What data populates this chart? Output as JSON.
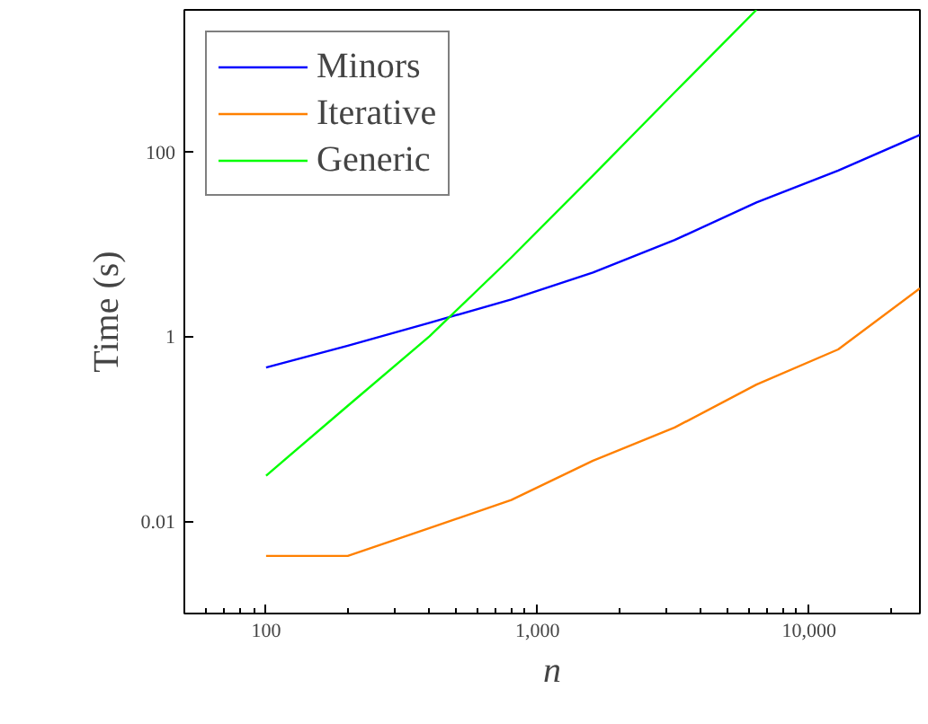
{
  "chart_data": {
    "type": "line",
    "xlabel": "n",
    "ylabel": "Time (s)",
    "log": "xy",
    "grid": false,
    "legend": "top left",
    "marker": "none",
    "line_style": "solid",
    "x": [
      100,
      200,
      400,
      800,
      1600,
      3200,
      6400,
      12800,
      25600
    ],
    "xlim": [
      50,
      25600
    ],
    "xticks": [
      {
        "value": 100,
        "label": "100"
      },
      {
        "value": 1000,
        "label": "1,000"
      },
      {
        "value": 10000,
        "label": "10,000"
      }
    ],
    "ylim": [
      0.001,
      3400
    ],
    "yticks": [
      0.01,
      1,
      100
    ],
    "series": [
      {
        "name": "Minors",
        "color": "#0000ff",
        "values": [
          0.46,
          0.79,
          1.4,
          2.5,
          4.9,
          11,
          28,
          62,
          151
        ]
      },
      {
        "name": "Iterative",
        "color": "#ff8000",
        "values": [
          0.0042,
          0.0042,
          0.0084,
          0.0169,
          0.045,
          0.103,
          0.3,
          0.72,
          3.3
        ]
      },
      {
        "name": "Generic",
        "color": "#00ff00",
        "values": [
          0.031,
          0.177,
          1.0,
          7.1,
          55,
          436,
          3400,
          null,
          null
        ]
      }
    ]
  }
}
